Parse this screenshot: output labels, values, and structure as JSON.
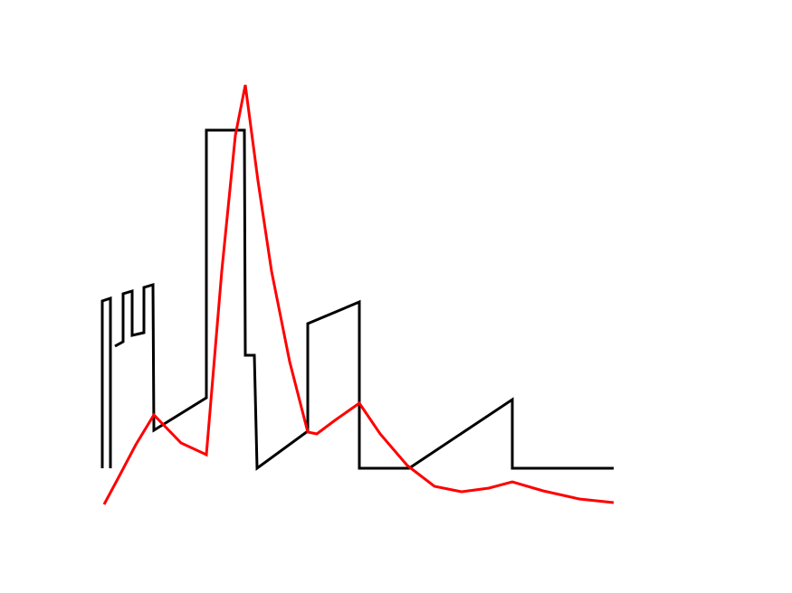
{
  "chart_data": {
    "type": "line",
    "xlim": [
      0,
      600
    ],
    "ylim": [
      0,
      560
    ],
    "series": [
      {
        "color": "#000000",
        "x": [
          13,
          13,
          22,
          22,
          24,
          27,
          36,
          36,
          46,
          46,
          59,
          59,
          69,
          70,
          128,
          128,
          170,
          171,
          181,
          184,
          240,
          240,
          297,
          297,
          352,
          466,
          466,
          578
        ],
        "values": [
          82,
          267,
          270,
          82,
          null,
          217,
          222,
          275,
          278,
          229,
          232,
          282,
          285,
          124,
          160,
          456,
          456,
          207,
          207,
          82,
          123,
          242,
          266,
          82,
          82,
          158,
          82,
          82
        ]
      },
      {
        "color": "#ff0000",
        "x": [
          15,
          30,
          50,
          70,
          100,
          128,
          145,
          160,
          171,
          185,
          200,
          220,
          240,
          250,
          270,
          297,
          320,
          350,
          380,
          410,
          440,
          466,
          500,
          540,
          578
        ],
        "values": [
          42,
          70,
          108,
          141,
          110,
          97,
          300,
          450,
          506,
          400,
          300,
          200,
          122,
          120,
          135,
          154,
          120,
          85,
          62,
          56,
          60,
          67,
          57,
          48,
          44
        ]
      }
    ]
  }
}
